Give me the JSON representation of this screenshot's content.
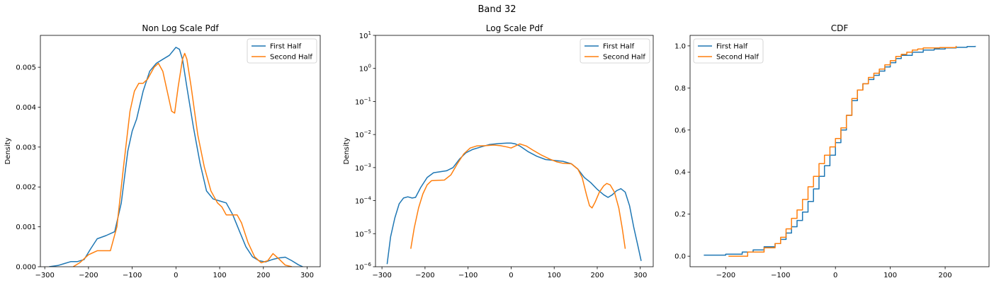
{
  "figure": {
    "suptitle": "Band 32"
  },
  "colors": {
    "first": "#1f77b4",
    "second": "#ff7f0e",
    "axis": "#000000",
    "background": "#ffffff"
  },
  "chart_data": [
    {
      "type": "line",
      "title": "Non Log Scale Pdf",
      "xlabel": "",
      "ylabel": "Density",
      "xlim": [
        -310,
        330
      ],
      "ylim": [
        0,
        0.0058
      ],
      "yscale": "linear",
      "xticks": [
        -300,
        -200,
        -100,
        0,
        100,
        200,
        300
      ],
      "xtick_labels": [
        "−300",
        "−200",
        "−100",
        "0",
        "100",
        "200",
        "300"
      ],
      "yticks": [
        0,
        0.001,
        0.002,
        0.003,
        0.004,
        0.005
      ],
      "ytick_labels": [
        "0.000",
        "0.001",
        "0.002",
        "0.003",
        "0.004",
        "0.005"
      ],
      "legend": {
        "position": "upper right",
        "entries": [
          "First Half",
          "Second Half"
        ]
      },
      "series": [
        {
          "name": "First Half",
          "color": "#1f77b4",
          "x": [
            -290,
            -270,
            -255,
            -240,
            -225,
            -210,
            -195,
            -180,
            -160,
            -140,
            -125,
            -110,
            -100,
            -90,
            -75,
            -60,
            -45,
            -30,
            -15,
            0,
            8,
            15,
            25,
            40,
            55,
            70,
            85,
            100,
            115,
            130,
            145,
            160,
            175,
            190,
            205,
            220,
            235,
            250,
            265,
            280,
            290
          ],
          "y": [
            0.0,
            3e-05,
            8e-05,
            0.00013,
            0.00013,
            0.00018,
            0.00045,
            0.0007,
            0.00078,
            0.00088,
            0.0016,
            0.0029,
            0.0034,
            0.0037,
            0.0044,
            0.0049,
            0.0051,
            0.0052,
            0.0053,
            0.0055,
            0.00545,
            0.0052,
            0.0045,
            0.0035,
            0.0026,
            0.0019,
            0.0017,
            0.00165,
            0.0016,
            0.0013,
            0.0009,
            0.0005,
            0.00025,
            0.00015,
            0.00012,
            0.00018,
            0.00022,
            0.00024,
            0.00015,
            5e-05,
            0.0
          ]
        },
        {
          "name": "Second Half",
          "color": "#ff7f0e",
          "x": [
            -235,
            -220,
            -200,
            -180,
            -165,
            -150,
            -135,
            -120,
            -105,
            -95,
            -85,
            -75,
            -65,
            -50,
            -40,
            -30,
            -20,
            -10,
            -3,
            5,
            15,
            20,
            25,
            35,
            50,
            65,
            80,
            95,
            105,
            115,
            130,
            140,
            150,
            165,
            180,
            195,
            210,
            222,
            235,
            250,
            265
          ],
          "y": [
            0.0,
            0.0001,
            0.0003,
            0.0004,
            0.0004,
            0.0004,
            0.001,
            0.0025,
            0.0039,
            0.0044,
            0.0046,
            0.0046,
            0.0047,
            0.005,
            0.0051,
            0.0049,
            0.0044,
            0.0039,
            0.00385,
            0.0045,
            0.0052,
            0.00535,
            0.0052,
            0.0045,
            0.0033,
            0.0025,
            0.0019,
            0.0016,
            0.0015,
            0.0013,
            0.0013,
            0.0013,
            0.0011,
            0.0006,
            0.00025,
            0.0001,
            0.00015,
            0.00033,
            0.0002,
            4e-05,
            0.0
          ]
        }
      ]
    },
    {
      "type": "line",
      "title": "Log Scale Pdf",
      "xlabel": "",
      "ylabel": "Density",
      "xlim": [
        -315,
        330
      ],
      "ylim": [
        1e-06,
        10
      ],
      "yscale": "log",
      "xticks": [
        -300,
        -200,
        -100,
        0,
        100,
        200,
        300
      ],
      "xtick_labels": [
        "−300",
        "−200",
        "−100",
        "0",
        "100",
        "200",
        "300"
      ],
      "yticks": [
        1e-06,
        1e-05,
        0.0001,
        0.001,
        0.01,
        0.1,
        1,
        10
      ],
      "ytick_labels": [
        [
          "10",
          "−6"
        ],
        [
          "10",
          "−5"
        ],
        [
          "10",
          "−4"
        ],
        [
          "10",
          "−3"
        ],
        [
          "10",
          "−2"
        ],
        [
          "10",
          "−1"
        ],
        [
          "10",
          "0"
        ],
        [
          "10",
          "1"
        ]
      ],
      "legend": {
        "position": "upper right",
        "entries": [
          "First Half",
          "Second Half"
        ]
      },
      "series": [
        {
          "name": "First Half",
          "color": "#1f77b4",
          "x": [
            -288,
            -280,
            -270,
            -260,
            -250,
            -240,
            -230,
            -222,
            -210,
            -195,
            -180,
            -165,
            -150,
            -135,
            -120,
            -105,
            -90,
            -70,
            -50,
            -30,
            -10,
            0,
            10,
            20,
            40,
            60,
            80,
            100,
            120,
            140,
            155,
            170,
            185,
            200,
            215,
            225,
            235,
            245,
            255,
            265,
            275,
            285,
            295,
            302
          ],
          "y": [
            1.2e-06,
            8e-06,
            3e-05,
            8e-05,
            0.00012,
            0.00013,
            0.00012,
            0.000125,
            0.00025,
            0.0005,
            0.0007,
            0.00075,
            0.0008,
            0.001,
            0.0018,
            0.0028,
            0.0035,
            0.0042,
            0.005,
            0.0053,
            0.0055,
            0.0055,
            0.0052,
            0.0045,
            0.003,
            0.0022,
            0.00175,
            0.00165,
            0.00155,
            0.0013,
            0.0009,
            0.0005,
            0.00035,
            0.00022,
            0.00015,
            0.000125,
            0.00015,
            0.0002,
            0.00023,
            0.00018,
            7e-05,
            1.5e-05,
            4e-06,
            1.5e-06
          ]
        },
        {
          "name": "Second Half",
          "color": "#ff7f0e",
          "x": [
            -233,
            -225,
            -215,
            -205,
            -195,
            -185,
            -170,
            -155,
            -140,
            -125,
            -110,
            -95,
            -80,
            -60,
            -40,
            -25,
            -10,
            0,
            10,
            20,
            35,
            50,
            70,
            90,
            105,
            120,
            140,
            155,
            165,
            175,
            182,
            188,
            195,
            205,
            215,
            222,
            230,
            240,
            250,
            258,
            265
          ],
          "y": [
            3.5e-06,
            1.5e-05,
            6e-05,
            0.00016,
            0.0003,
            0.0004,
            0.00041,
            0.00042,
            0.0006,
            0.0013,
            0.0026,
            0.0039,
            0.0045,
            0.0046,
            0.0048,
            0.0046,
            0.0042,
            0.0039,
            0.0045,
            0.0052,
            0.0045,
            0.0034,
            0.0024,
            0.0018,
            0.0015,
            0.00135,
            0.0013,
            0.0009,
            0.0005,
            0.00015,
            7e-05,
            6e-05,
            9e-05,
            0.00018,
            0.00028,
            0.00033,
            0.0003,
            0.00018,
            6e-05,
            1.5e-05,
            3.5e-06
          ]
        }
      ]
    },
    {
      "type": "line",
      "title": "CDF",
      "xlabel": "",
      "ylabel": "",
      "xlim": [
        -265,
        280
      ],
      "ylim": [
        -0.05,
        1.05
      ],
      "yscale": "linear",
      "step": true,
      "xticks": [
        -200,
        -100,
        0,
        100,
        200
      ],
      "xtick_labels": [
        "−200",
        "−100",
        "0",
        "100",
        "200"
      ],
      "yticks": [
        0,
        0.2,
        0.4,
        0.6,
        0.8,
        1.0
      ],
      "ytick_labels": [
        "0.0",
        "0.2",
        "0.4",
        "0.6",
        "0.8",
        "1.0"
      ],
      "legend": {
        "position": "upper left",
        "entries": [
          "First Half",
          "Second Half"
        ]
      },
      "series": [
        {
          "name": "First Half",
          "color": "#1f77b4",
          "x": [
            -240,
            -200,
            -170,
            -150,
            -130,
            -110,
            -100,
            -90,
            -80,
            -70,
            -60,
            -50,
            -40,
            -30,
            -20,
            -10,
            0,
            10,
            20,
            30,
            40,
            50,
            60,
            70,
            80,
            90,
            100,
            110,
            120,
            140,
            160,
            180,
            200,
            220,
            240,
            255
          ],
          "y": [
            0.005,
            0.01,
            0.02,
            0.03,
            0.045,
            0.06,
            0.08,
            0.11,
            0.14,
            0.17,
            0.21,
            0.26,
            0.32,
            0.38,
            0.43,
            0.48,
            0.54,
            0.6,
            0.67,
            0.74,
            0.79,
            0.82,
            0.84,
            0.86,
            0.88,
            0.9,
            0.92,
            0.94,
            0.955,
            0.97,
            0.98,
            0.985,
            0.99,
            0.993,
            0.997,
            1.0
          ]
        },
        {
          "name": "Second Half",
          "color": "#ff7f0e",
          "x": [
            -195,
            -160,
            -130,
            -110,
            -100,
            -90,
            -80,
            -70,
            -60,
            -50,
            -40,
            -30,
            -20,
            -10,
            0,
            10,
            20,
            30,
            40,
            50,
            60,
            70,
            80,
            90,
            100,
            110,
            120,
            130,
            140,
            150,
            160,
            190,
            220
          ],
          "y": [
            0.0,
            0.02,
            0.04,
            0.06,
            0.09,
            0.13,
            0.18,
            0.22,
            0.27,
            0.33,
            0.38,
            0.44,
            0.48,
            0.52,
            0.56,
            0.61,
            0.67,
            0.75,
            0.79,
            0.82,
            0.85,
            0.87,
            0.89,
            0.91,
            0.93,
            0.95,
            0.96,
            0.97,
            0.98,
            0.985,
            0.99,
            0.992,
            1.0
          ]
        }
      ]
    }
  ]
}
